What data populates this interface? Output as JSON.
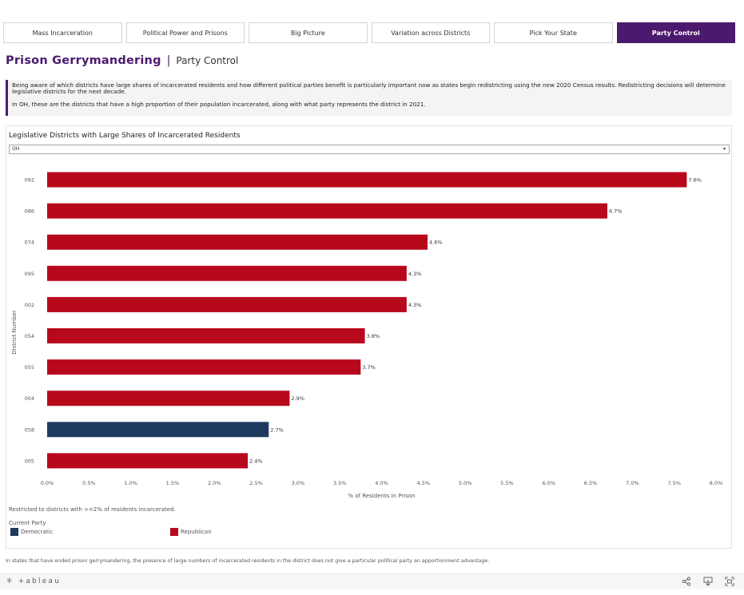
{
  "tabs": [
    {
      "label": "Mass Incarceration",
      "active": false
    },
    {
      "label": "Political Power and Prisons",
      "active": false
    },
    {
      "label": "Big Picture",
      "active": false
    },
    {
      "label": "Variation across Districts",
      "active": false
    },
    {
      "label": "Pick Your State",
      "active": false
    },
    {
      "label": "Party Control",
      "active": true
    }
  ],
  "header": {
    "title": "Prison Gerrymandering",
    "separator": "|",
    "subtitle": "Party Control"
  },
  "intro": {
    "paragraph1": "Being aware of which districts have large shares of incarcerated residents and how different political parties benefit is particularly important now as states begin redistricting using the new 2020 Census results. Redistricting decisions will determine legislative districts for the next decade.",
    "paragraph2": "In OH, these are the districts that have a high proportion of their population incarcerated, along with what party represents the district in 2021."
  },
  "filter": {
    "selected": "OH",
    "caret": "▾"
  },
  "legend": {
    "restriction_note": "Restricted to districts with >=2% of residents incarcerated.",
    "title": "Current Party",
    "items": [
      {
        "label": "Democratic",
        "color": "#1f3a5f"
      },
      {
        "label": "Republican",
        "color": "#b8081c"
      }
    ]
  },
  "footnote": "In states that have ended prison gerrymandering, the presence of large numbers of incarcerated residents in the district does not give a particular political party an apportionment advantage.",
  "footer": {
    "logo_text": "+ableau",
    "logo_mark": "⁜"
  },
  "chart_data": {
    "type": "bar",
    "orientation": "horizontal",
    "title": "Legislative Districts with Large Shares of Incarcerated Residents",
    "xlabel": "% of Residents in Prison",
    "ylabel": "District Number",
    "xlim": [
      0,
      8.0
    ],
    "xticks": [
      "0.0%",
      "0.5%",
      "1.0%",
      "1.5%",
      "2.0%",
      "2.5%",
      "3.0%",
      "3.5%",
      "4.0%",
      "4.5%",
      "5.0%",
      "5.5%",
      "6.0%",
      "6.5%",
      "7.0%",
      "7.5%",
      "8.0%"
    ],
    "grid": false,
    "legend_position": "bottom-left",
    "categories": [
      "092",
      "086",
      "074",
      "095",
      "002",
      "054",
      "055",
      "004",
      "058",
      "005"
    ],
    "values": [
      7.65,
      6.7,
      4.55,
      4.3,
      4.3,
      3.8,
      3.75,
      2.9,
      2.65,
      2.4
    ],
    "labels": [
      "7.6%",
      "6.7%",
      "4.6%",
      "4.3%",
      "4.3%",
      "3.8%",
      "3.7%",
      "2.9%",
      "2.7%",
      "2.4%"
    ],
    "party": [
      "Republican",
      "Republican",
      "Republican",
      "Republican",
      "Republican",
      "Republican",
      "Republican",
      "Republican",
      "Democratic",
      "Republican"
    ],
    "party_colors": {
      "Republican": "#b8081c",
      "Democratic": "#1f3a5f"
    }
  }
}
